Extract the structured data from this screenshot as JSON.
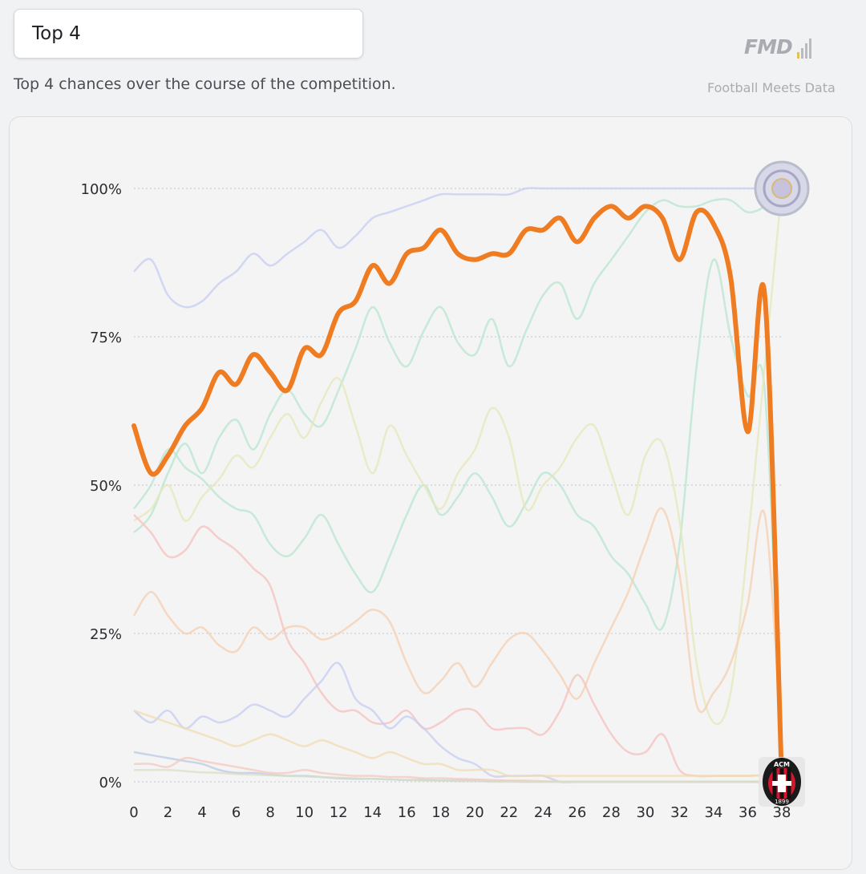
{
  "header": {
    "selector_label": "Top 4",
    "subtitle": "Top 4 chances over the course of the competition.",
    "logo_text": "FMD",
    "brand_name": "Football Meets Data"
  },
  "chart_data": {
    "type": "line",
    "title": "",
    "xlabel": "",
    "ylabel": "",
    "xlim": [
      0,
      38
    ],
    "ylim": [
      0,
      100
    ],
    "x_ticks": [
      "0",
      "2",
      "4",
      "6",
      "8",
      "10",
      "12",
      "14",
      "16",
      "18",
      "20",
      "22",
      "24",
      "26",
      "28",
      "30",
      "32",
      "34",
      "36",
      "38"
    ],
    "y_ticks": [
      "0%",
      "25%",
      "50%",
      "75%",
      "100%"
    ],
    "highlight_color": "#f07c22",
    "highlight_series": {
      "name": "AC Milan",
      "x": [
        0,
        1,
        2,
        3,
        4,
        5,
        6,
        7,
        8,
        9,
        10,
        11,
        12,
        13,
        14,
        15,
        16,
        17,
        18,
        19,
        20,
        21,
        22,
        23,
        24,
        25,
        26,
        27,
        28,
        29,
        30,
        31,
        32,
        33,
        34,
        35,
        36,
        37,
        38
      ],
      "values": [
        60,
        52,
        55,
        60,
        63,
        69,
        67,
        72,
        69,
        66,
        73,
        72,
        79,
        81,
        87,
        84,
        89,
        90,
        93,
        89,
        88,
        89,
        89,
        93,
        93,
        95,
        91,
        95,
        97,
        95,
        97,
        95,
        88,
        96,
        94,
        85,
        59,
        82,
        0
      ]
    },
    "background_series": [
      {
        "color": "#c6cdf2",
        "values": [
          86,
          88,
          82,
          80,
          81,
          84,
          86,
          89,
          87,
          89,
          91,
          93,
          90,
          92,
          95,
          96,
          97,
          98,
          99,
          99,
          99,
          99,
          99,
          100,
          100,
          100,
          100,
          100,
          100,
          100,
          100,
          100,
          100,
          100,
          100,
          100,
          100,
          100,
          100
        ]
      },
      {
        "color": "#b7e6cf",
        "values": [
          46,
          50,
          56,
          53,
          51,
          48,
          46,
          45,
          40,
          38,
          41,
          45,
          40,
          35,
          32,
          38,
          45,
          50,
          45,
          48,
          52,
          48,
          43,
          47,
          52,
          50,
          45,
          43,
          38,
          35,
          30,
          26,
          40,
          70,
          88,
          75,
          65,
          66,
          0
        ]
      },
      {
        "color": "#b7e6cf",
        "values": [
          42,
          45,
          52,
          57,
          52,
          58,
          61,
          56,
          62,
          66,
          62,
          60,
          66,
          73,
          80,
          74,
          70,
          76,
          80,
          74,
          72,
          78,
          70,
          76,
          82,
          84,
          78,
          84,
          88,
          92,
          96,
          98,
          97,
          97,
          98,
          98,
          96,
          97,
          100
        ]
      },
      {
        "color": "#e5e8b9",
        "values": [
          44,
          46,
          50,
          44,
          48,
          51,
          55,
          53,
          58,
          62,
          58,
          64,
          68,
          60,
          52,
          60,
          55,
          50,
          46,
          52,
          56,
          63,
          58,
          46,
          50,
          53,
          58,
          60,
          52,
          45,
          55,
          57,
          44,
          20,
          10,
          15,
          40,
          70,
          100
        ]
      },
      {
        "color": "#f7cfb0",
        "values": [
          28,
          32,
          28,
          25,
          26,
          23,
          22,
          26,
          24,
          26,
          26,
          24,
          25,
          27,
          29,
          27,
          20,
          15,
          17,
          20,
          16,
          20,
          24,
          25,
          22,
          18,
          14,
          20,
          26,
          32,
          40,
          46,
          35,
          13,
          15,
          20,
          30,
          45,
          5
        ]
      },
      {
        "color": "#f5c0bd",
        "values": [
          45,
          42,
          38,
          39,
          43,
          41,
          39,
          36,
          33,
          24,
          20,
          15,
          12,
          12,
          10,
          10,
          12,
          9,
          10,
          12,
          12,
          9,
          9,
          9,
          8,
          12,
          18,
          13,
          8,
          5,
          5,
          8,
          2,
          1,
          1,
          1,
          1,
          1,
          0
        ]
      },
      {
        "color": "#c6cdf2",
        "values": [
          12,
          10,
          12,
          9,
          11,
          10,
          11,
          13,
          12,
          11,
          14,
          17,
          20,
          14,
          12,
          9,
          11,
          9,
          6,
          4,
          3,
          1,
          1,
          1,
          1,
          0,
          0,
          0,
          0,
          0,
          0,
          0,
          0,
          0,
          0,
          0,
          0,
          0,
          0
        ]
      },
      {
        "color": "#f0dcb0",
        "values": [
          12,
          11,
          10,
          9,
          8,
          7,
          6,
          7,
          8,
          7,
          6,
          7,
          6,
          5,
          4,
          5,
          4,
          3,
          3,
          2,
          2,
          2,
          1,
          1,
          1,
          1,
          1,
          1,
          1,
          1,
          1,
          1,
          1,
          1,
          1,
          1,
          1,
          1,
          0
        ]
      },
      {
        "color": "#b9c9e4",
        "values": [
          5,
          4.5,
          4,
          3.5,
          3,
          2,
          1.5,
          1.5,
          1.2,
          1,
          1,
          0.8,
          0.6,
          0.5,
          0.5,
          0.4,
          0.3,
          0.3,
          0.2,
          0.2,
          0.2,
          0.1,
          0.1,
          0,
          0,
          0,
          0,
          0,
          0,
          0,
          0,
          0,
          0,
          0,
          0,
          0,
          0,
          0,
          0
        ]
      },
      {
        "color": "#f5c8c0",
        "values": [
          3,
          3,
          2.5,
          4,
          3.5,
          3,
          2.5,
          2,
          1.5,
          1.5,
          2,
          1.5,
          1.2,
          1,
          1,
          0.8,
          0.8,
          0.6,
          0.6,
          0.5,
          0.4,
          0.3,
          0.2,
          0.2,
          0.1,
          0,
          0,
          0,
          0,
          0,
          0,
          0,
          0,
          0,
          0,
          0,
          0,
          0,
          0
        ]
      },
      {
        "color": "#d8e0c4",
        "values": [
          2,
          2,
          2,
          1.8,
          1.6,
          1.5,
          1.3,
          1.2,
          1.1,
          1,
          0.9,
          0.8,
          0.7,
          0.6,
          0.5,
          0.4,
          0.3,
          0.2,
          0.2,
          0.1,
          0.1,
          0,
          0,
          0,
          0,
          0,
          0,
          0,
          0,
          0,
          0,
          0,
          0,
          0,
          0,
          0,
          0,
          0,
          0
        ]
      }
    ],
    "end_markers": [
      {
        "name": "Inter crest",
        "value": 100,
        "icon": "inter-crest"
      },
      {
        "name": "AC Milan crest",
        "value": 0,
        "icon": "milan-crest",
        "crest_text": "ACM",
        "crest_year": "1899"
      }
    ],
    "grid": true,
    "legend": "none"
  }
}
